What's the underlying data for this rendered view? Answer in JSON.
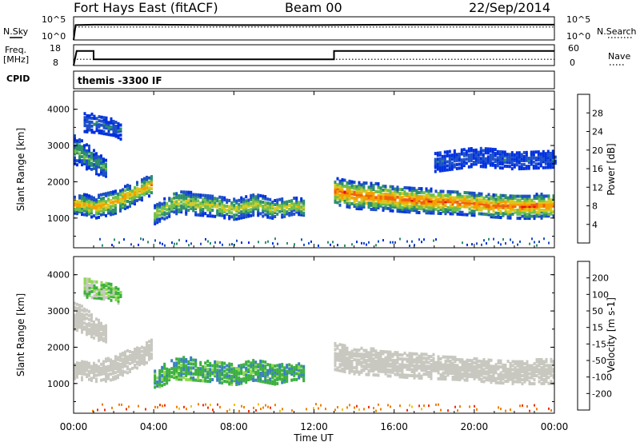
{
  "header": {
    "station": "Fort Hays East (fitACF)",
    "beam": "Beam 00",
    "date": "22/Sep/2014"
  },
  "noise_panel": {
    "left_label": "N.Sky",
    "right_label": "N.Search",
    "left_ticks": [
      "10^5",
      "10^0"
    ],
    "right_ticks": [
      "10^5",
      "10^0"
    ]
  },
  "freq_panel": {
    "left_label_1": "Freq.",
    "left_label_2": "[MHz]",
    "right_label": "Nave",
    "left_ticks": [
      "18",
      "8"
    ],
    "right_ticks": [
      "60",
      "0"
    ]
  },
  "cpid": {
    "label": "CPID",
    "value": "themis -3300 IF"
  },
  "power_panel": {
    "ylabel": "Slant Range [km]",
    "yticks": [
      "4000",
      "3000",
      "2000",
      "1000"
    ],
    "colorbar_label": "Power [dB]",
    "colorbar_ticks": [
      "28",
      "24",
      "20",
      "16",
      "12",
      "8",
      "4"
    ],
    "colors": [
      "#0030e0",
      "#1e50c8",
      "#2d8f6c",
      "#6fbf4a",
      "#d8c820",
      "#f5a000",
      "#f06010",
      "#e81010"
    ]
  },
  "velocity_panel": {
    "ylabel": "Slant Range [km]",
    "yticks": [
      "4000",
      "3000",
      "2000",
      "1000"
    ],
    "colorbar_label": "Velocity [m s-1]",
    "colorbar_ticks": [
      "200",
      "100",
      "50",
      "15",
      "-15",
      "-50",
      "-100",
      "-200"
    ],
    "colors": [
      "#1e3cd0",
      "#3a80c0",
      "#3cb040",
      "#8fd850",
      "#c8c8c0",
      "#f0c020",
      "#f08000",
      "#f03010",
      "#e00000"
    ]
  },
  "xaxis": {
    "label": "Time UT",
    "ticks": [
      "00:00",
      "04:00",
      "08:00",
      "12:00",
      "16:00",
      "20:00",
      "00:00"
    ]
  },
  "chart_data": [
    {
      "type": "line",
      "panel": "noise",
      "series": [
        {
          "name": "N.Sky",
          "style": "solid",
          "x_hours": [
            0,
            0.1,
            1,
            4,
            8,
            12,
            16,
            20,
            24
          ],
          "values_log10": [
            0,
            3.2,
            3.3,
            3.3,
            3.2,
            3.2,
            3.3,
            3.3,
            3.3
          ]
        },
        {
          "name": "N.Search",
          "style": "dotted",
          "x_hours": [
            0,
            0.1,
            1,
            4,
            8,
            12,
            16,
            20,
            24
          ],
          "values_log10": [
            0,
            2.8,
            2.8,
            2.8,
            2.8,
            2.8,
            2.8,
            2.8,
            2.8
          ]
        }
      ],
      "ylim_log10": [
        0,
        5
      ],
      "xlim_hours": [
        0,
        24
      ]
    },
    {
      "type": "line",
      "panel": "frequency",
      "series": [
        {
          "name": "Freq. [MHz]",
          "style": "solid",
          "x_hours": [
            0,
            0.15,
            1.0,
            1.0,
            13.0,
            13.0,
            24
          ],
          "values": [
            8,
            15,
            15,
            11,
            11,
            15,
            15
          ]
        },
        {
          "name": "Nave",
          "style": "dotted",
          "x_hours": [
            0,
            1,
            4,
            8,
            12,
            16,
            20,
            24
          ],
          "values": [
            18,
            18,
            18,
            18,
            18,
            18,
            18,
            18
          ]
        }
      ],
      "ylim_freq": [
        8,
        18
      ],
      "ylim_nave": [
        0,
        60
      ],
      "xlim_hours": [
        0,
        24
      ]
    },
    {
      "type": "heatmap",
      "panel": "power",
      "x_label": "Time UT",
      "y_label": "Slant Range [km]",
      "z_label": "Power [dB]",
      "xlim_hours": [
        0,
        24
      ],
      "ylim_km": [
        180,
        4500
      ],
      "zlim_db": [
        0,
        32
      ],
      "bands": [
        {
          "t": [
            0.0,
            0.6,
            1.0,
            2.0,
            3.0,
            3.9
          ],
          "center_km": [
            1350,
            1320,
            1250,
            1400,
            1650,
            1900
          ],
          "width_km": [
            260,
            280,
            300,
            320,
            300,
            280
          ],
          "db": 22
        },
        {
          "t": [
            4.0,
            5.0,
            6.0,
            7.0,
            8.0,
            9.0,
            10.0,
            11.0,
            11.5
          ],
          "center_km": [
            1050,
            1400,
            1350,
            1300,
            1200,
            1350,
            1200,
            1300,
            1250
          ],
          "width_km": [
            250,
            320,
            300,
            300,
            280,
            300,
            260,
            230,
            220
          ],
          "db": 18
        },
        {
          "t": [
            13.0,
            14.0,
            15.0,
            16.0,
            17.0,
            18.0,
            19.0,
            20.0,
            21.0,
            22.0,
            23.0,
            24.0
          ],
          "center_km": [
            1700,
            1600,
            1550,
            1500,
            1450,
            1420,
            1400,
            1350,
            1300,
            1280,
            1280,
            1300
          ],
          "width_km": [
            360,
            380,
            360,
            350,
            340,
            330,
            330,
            320,
            320,
            330,
            330,
            340
          ],
          "db": 26
        },
        {
          "t": [
            0.0,
            0.5,
            1.0,
            1.6
          ],
          "center_km": [
            2850,
            2700,
            2500,
            2300
          ],
          "width_km": [
            400,
            360,
            300,
            260
          ],
          "db": 12
        },
        {
          "t": [
            0.5,
            1.2,
            2.0,
            2.4
          ],
          "center_km": [
            3600,
            3550,
            3450,
            3300
          ],
          "width_km": [
            260,
            240,
            220,
            200
          ],
          "db": 8
        },
        {
          "t": [
            18.0,
            20.0,
            22.0,
            24.0
          ],
          "center_km": [
            2500,
            2650,
            2550,
            2600
          ],
          "width_km": [
            260,
            260,
            240,
            240
          ],
          "db": 6
        }
      ],
      "ground_scatter_band_km": [
        200,
        400
      ],
      "ground_scatter_db": 10
    },
    {
      "type": "heatmap",
      "panel": "velocity",
      "x_label": "Time UT",
      "y_label": "Slant Range [km]",
      "z_label": "Velocity [m s-1]",
      "xlim_hours": [
        0,
        24
      ],
      "ylim_km": [
        180,
        4500
      ],
      "zlim_ms": [
        -200,
        200
      ],
      "bands": [
        {
          "t": [
            0.0,
            0.6,
            1.0,
            2.0,
            3.0,
            3.9
          ],
          "center_km": [
            1350,
            1320,
            1250,
            1400,
            1650,
            1900
          ],
          "width_km": [
            260,
            280,
            300,
            320,
            300,
            280
          ],
          "velocity": 0
        },
        {
          "t": [
            4.0,
            5.0,
            6.0,
            7.0,
            8.0,
            9.0,
            10.0,
            11.0,
            11.5
          ],
          "center_km": [
            1050,
            1400,
            1350,
            1300,
            1200,
            1350,
            1200,
            1300,
            1250
          ],
          "width_km": [
            250,
            320,
            300,
            300,
            280,
            300,
            260,
            230,
            220
          ],
          "velocity": 60
        },
        {
          "t": [
            13.0,
            14.0,
            15.0,
            16.0,
            17.0,
            18.0,
            19.0,
            20.0,
            21.0,
            22.0,
            23.0,
            24.0
          ],
          "center_km": [
            1700,
            1600,
            1550,
            1500,
            1450,
            1420,
            1400,
            1350,
            1300,
            1280,
            1280,
            1300
          ],
          "width_km": [
            360,
            380,
            360,
            350,
            340,
            330,
            330,
            320,
            320,
            330,
            330,
            340
          ],
          "velocity": 0
        },
        {
          "t": [
            0.0,
            0.5,
            1.0,
            1.6
          ],
          "center_km": [
            2850,
            2700,
            2500,
            2300
          ],
          "width_km": [
            400,
            360,
            300,
            260
          ],
          "velocity": 0
        },
        {
          "t": [
            0.5,
            1.2,
            2.0,
            2.4
          ],
          "center_km": [
            3600,
            3550,
            3450,
            3300
          ],
          "width_km": [
            260,
            240,
            220,
            200
          ],
          "velocity": 30
        }
      ],
      "ground_scatter_band_km": [
        200,
        400
      ],
      "ground_scatter_velocity": -60
    }
  ]
}
